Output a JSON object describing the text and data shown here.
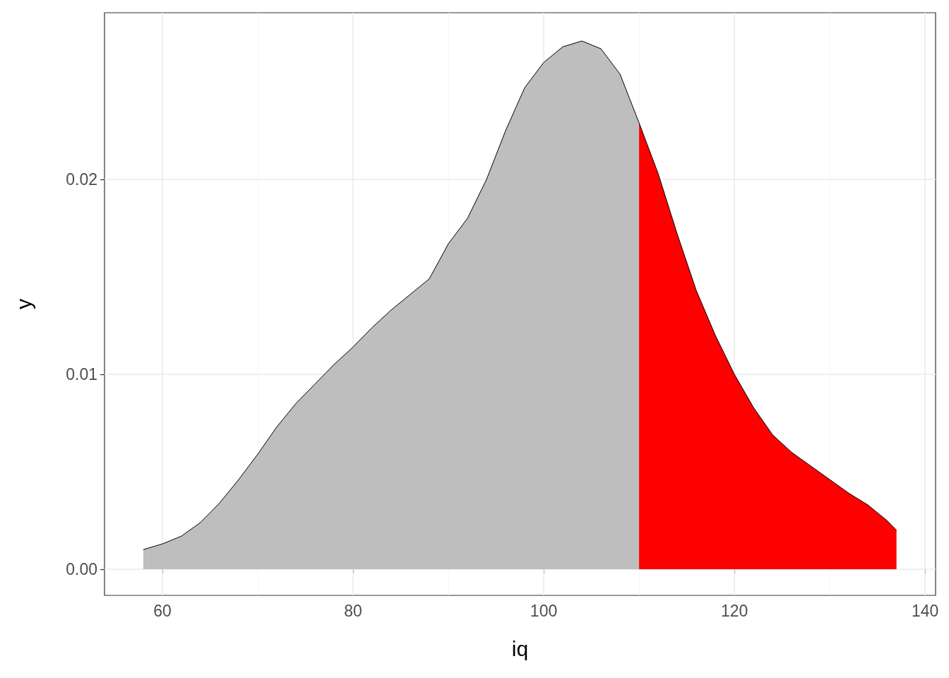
{
  "chart_data": {
    "type": "area",
    "xlabel": "iq",
    "ylabel": "y",
    "xlim": [
      53.93,
      141.1
    ],
    "ylim": [
      -0.00134,
      0.02855
    ],
    "xticks": [
      60,
      80,
      100,
      120,
      140
    ],
    "yticks": [
      {
        "value": 0,
        "label": "0.00"
      },
      {
        "value": 0.01,
        "label": "0.01"
      },
      {
        "value": 0.02,
        "label": "0.02"
      }
    ],
    "grid": true,
    "series": [
      {
        "color": "#bebebe",
        "x": [
          58,
          60,
          62,
          64,
          66,
          68,
          70,
          72,
          74,
          76,
          78,
          80,
          82,
          84,
          86,
          88,
          90,
          92,
          94,
          96,
          98,
          100,
          102,
          104,
          106,
          108,
          110
        ],
        "values": [
          0.00101,
          0.0013,
          0.0017,
          0.0024,
          0.0034,
          0.0046,
          0.0059,
          0.0073,
          0.0085,
          0.0095,
          0.0105,
          0.0114,
          0.0124,
          0.0133,
          0.0141,
          0.0149,
          0.0167,
          0.018,
          0.02,
          0.0225,
          0.0247,
          0.026,
          0.0268,
          0.0271,
          0.0267,
          0.0254,
          0.0229
        ]
      },
      {
        "color": "#ff0000",
        "x": [
          110,
          112,
          114,
          116,
          118,
          120,
          122,
          124,
          126,
          128,
          130,
          132,
          134,
          136,
          137
        ],
        "values": [
          0.0229,
          0.0203,
          0.0172,
          0.0143,
          0.012,
          0.01,
          0.0083,
          0.0069,
          0.006,
          0.0053,
          0.0046,
          0.0039,
          0.0033,
          0.0025,
          0.002
        ]
      }
    ]
  }
}
